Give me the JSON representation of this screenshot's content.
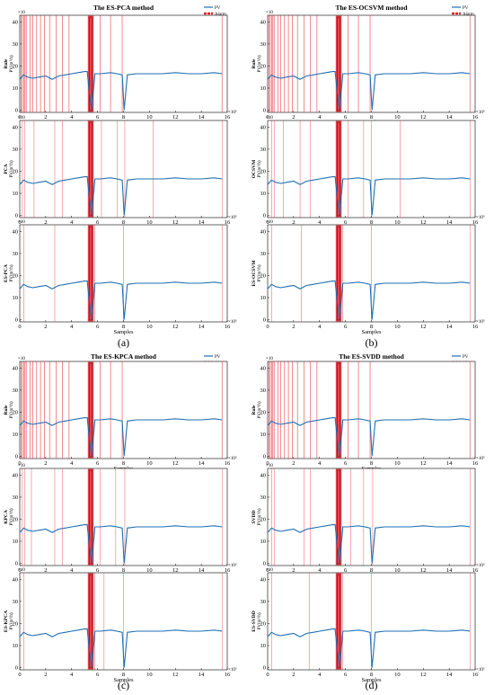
{
  "figure": {
    "quadrants": [
      {
        "label": "(a)",
        "title": "The ES-PCA method",
        "ylabels": [
          "Rule",
          "PCA",
          "ES-PCA"
        ]
      },
      {
        "label": "(b)",
        "title": "The ES-OCSVM method",
        "ylabels": [
          "Rule",
          "OCSVM",
          "ES-OCSVM"
        ]
      },
      {
        "label": "(c)",
        "title": "The ES-KPCA method",
        "ylabels": [
          "Rule",
          "KPCA",
          "ES-KPCA"
        ]
      },
      {
        "label": "(d)",
        "title": "The ES-SVDD method",
        "ylabels": [
          "Rule",
          "SVDD",
          "ES-SVDD"
        ]
      }
    ],
    "ylabel_unit": "PV(m³/h)",
    "y_multiplier": "×10",
    "x_multiplier": "×10⁵",
    "xlabel": "Samples",
    "legend": [
      "PV",
      "Alarm"
    ],
    "colors": {
      "pv": "#1f6fb4",
      "alarm": "#e8212a"
    }
  },
  "chart_data": {
    "type": "line",
    "x_unit": "Samples (×10^5)",
    "y_unit": "PV (×10 m³/h)",
    "xlim": [
      0,
      16
    ],
    "ylim": [
      -1,
      43
    ],
    "xticks": [
      0,
      2,
      4,
      6,
      8,
      10,
      12,
      14,
      16
    ],
    "yticks": [
      0,
      10,
      20,
      30,
      40
    ],
    "series": [
      {
        "name": "PV",
        "x": [
          0,
          0.3,
          0.6,
          1,
          1.5,
          2,
          2.5,
          3,
          3.5,
          4,
          4.5,
          5,
          5.2,
          5.35,
          5.55,
          5.8,
          6.2,
          7,
          7.5,
          7.9,
          8.05,
          8.3,
          9,
          10,
          11,
          12,
          13,
          14,
          15,
          15.6
        ],
        "y": [
          14,
          16,
          15,
          14.5,
          15,
          15.5,
          14,
          15.5,
          16,
          16.5,
          17,
          17.5,
          17.5,
          9,
          0,
          16.5,
          16.5,
          17,
          16.5,
          16,
          0,
          16,
          16.5,
          16.5,
          16.5,
          17,
          16.5,
          16.5,
          17,
          16.5
        ]
      }
    ],
    "alarm_band": [
      5.25,
      5.7
    ],
    "alarm_lines": {
      "rule": [
        0.1,
        0.2,
        0.3,
        0.4,
        0.5,
        0.8,
        1.0,
        1.3,
        1.6,
        1.9,
        2.3,
        2.8,
        3.3,
        3.8,
        6.2,
        7.0,
        7.9,
        15.6
      ],
      "a_mid": [
        0.2,
        0.4,
        1.1,
        2.7,
        3.3,
        6.3,
        7.5,
        8.1,
        10.3,
        15.6
      ],
      "b_mid": [
        0.3,
        0.5,
        1.2,
        2.5,
        3.3,
        6.2,
        7.4,
        8.0,
        10.2,
        15.6
      ],
      "c_mid": [
        0.2,
        0.4,
        0.9,
        2.7,
        3.3,
        6.2,
        7.4,
        8.1,
        15.6
      ],
      "d_mid": [
        0.3,
        0.5,
        2.8,
        3.3,
        6.4,
        7.4,
        8.1,
        15.6
      ],
      "a_es": [
        0.3,
        2.7,
        5.8,
        8.0,
        15.6
      ],
      "b_es": [
        0.3,
        2.6,
        5.8,
        8.0,
        15.6
      ],
      "c_es": [
        0.3,
        5.8,
        6.5,
        8.0,
        15.6
      ],
      "d_es": [
        0.3,
        3.2,
        5.8,
        8.0,
        15.6
      ]
    },
    "legend_position": "top-right",
    "grid": false
  }
}
